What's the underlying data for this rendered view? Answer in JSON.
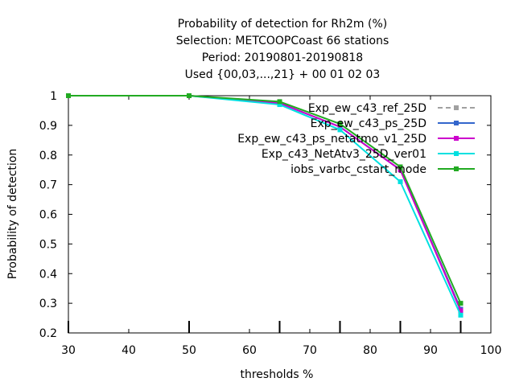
{
  "chart_data": {
    "type": "line",
    "title_lines": [
      "Probability of detection  for Rh2m (%)",
      "Selection: METCOOPCoast     66 stations",
      "Period: 20190801-20190818",
      "Used {00,03,...,21} + 00 01 02 03"
    ],
    "xlabel": "thresholds %",
    "ylabel": "Probability of detection",
    "xlim": [
      30,
      100
    ],
    "ylim": [
      0.2,
      1.0
    ],
    "xticks": [
      30,
      40,
      50,
      60,
      70,
      80,
      90,
      100
    ],
    "yticks": [
      0.2,
      0.3,
      0.4,
      0.5,
      0.6,
      0.7,
      0.8,
      0.9,
      1.0
    ],
    "xtick_labels": [
      "30",
      "40",
      "50",
      "60",
      "70",
      "80",
      "90",
      "100"
    ],
    "ytick_labels": [
      "0.2",
      "0.3",
      "0.4",
      "0.5",
      "0.6",
      "0.7",
      "0.8",
      "0.9",
      "1"
    ],
    "x": [
      30,
      50,
      65,
      75,
      85,
      95
    ],
    "grid": false,
    "legend_position": "top-right",
    "series": [
      {
        "name": "Exp_ew_c43_ref_25D",
        "color": "#a0a0a0",
        "dashed": true,
        "values": [
          1.0,
          1.0,
          0.975,
          0.895,
          0.75,
          0.28
        ]
      },
      {
        "name": "Exp_ew_c43_ps_25D",
        "color": "#3366cc",
        "dashed": false,
        "values": [
          1.0,
          1.0,
          0.975,
          0.895,
          0.75,
          0.28
        ]
      },
      {
        "name": "Exp_ew_c43_ps_netatmo_v1_25D",
        "color": "#cc00cc",
        "dashed": false,
        "values": [
          1.0,
          1.0,
          0.975,
          0.895,
          0.75,
          0.275
        ]
      },
      {
        "name": "Exp_c43_NetAtv3_25D_ver01",
        "color": "#00e0e0",
        "dashed": false,
        "values": [
          1.0,
          1.0,
          0.97,
          0.885,
          0.71,
          0.26
        ]
      },
      {
        "name": "iobs_varbc_cstart_mode",
        "color": "#22aa22",
        "dashed": false,
        "values": [
          1.0,
          1.0,
          0.98,
          0.905,
          0.76,
          0.3
        ]
      }
    ]
  }
}
